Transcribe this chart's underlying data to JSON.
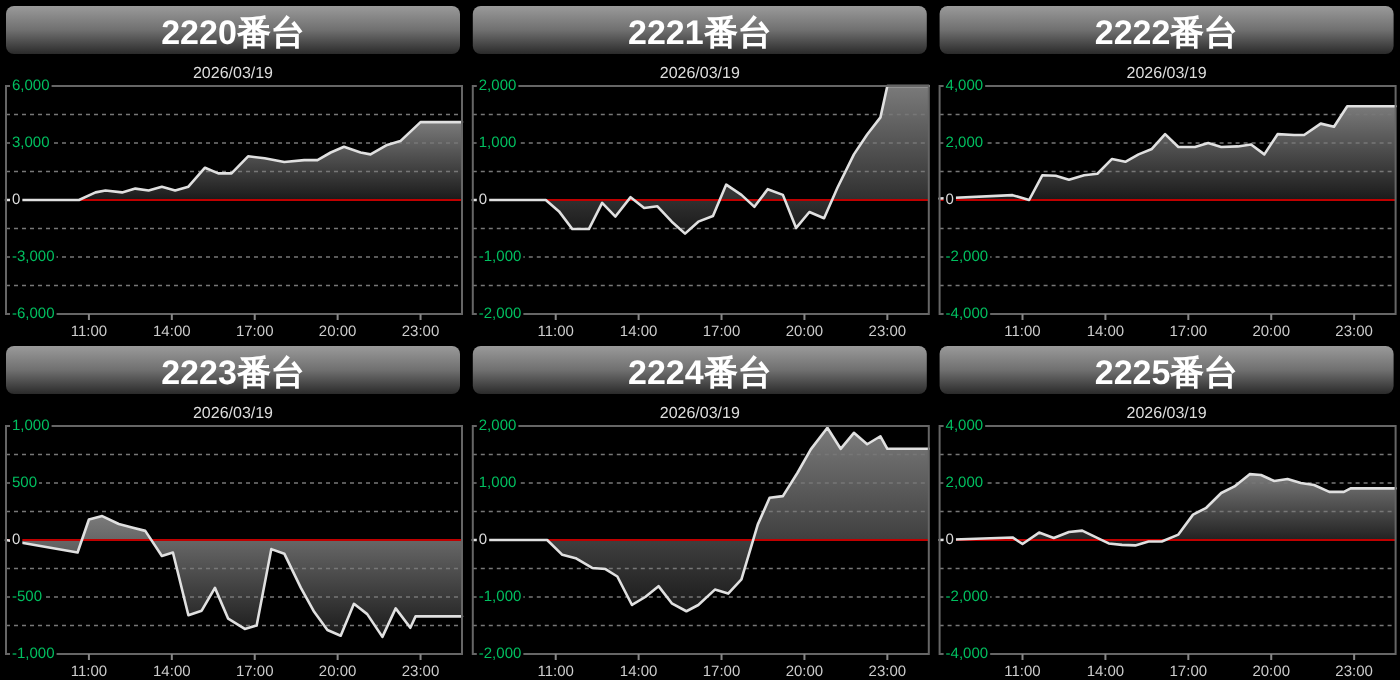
{
  "chart_data": [
    {
      "type": "area",
      "title": "2220番台",
      "subtitle": "2026/03/19",
      "xlim": [
        8,
        24.5
      ],
      "xticks": [
        {
          "value": 11,
          "label": "11:00"
        },
        {
          "value": 14,
          "label": "14:00"
        },
        {
          "value": 17,
          "label": "17:00"
        },
        {
          "value": 20,
          "label": "20:00"
        },
        {
          "value": 23,
          "label": "23:00"
        }
      ],
      "ylim": [
        -6000,
        6000
      ],
      "yticks": [
        {
          "value": 6000,
          "label": "6,000"
        },
        {
          "value": 4500,
          "label": null
        },
        {
          "value": 3000,
          "label": "3,000"
        },
        {
          "value": 1500,
          "label": null
        },
        {
          "value": 0,
          "label": "0"
        },
        {
          "value": -1500,
          "label": null
        },
        {
          "value": -3000,
          "label": "-3,000"
        },
        {
          "value": -4500,
          "label": null
        },
        {
          "value": -6000,
          "label": "-6,000"
        }
      ],
      "grid": "y",
      "ref_lines": [
        {
          "axis": "y",
          "value": 0,
          "color": "#c00000"
        }
      ],
      "x": [
        8.0,
        10.64,
        11.24,
        11.6,
        12.2,
        12.68,
        13.16,
        13.64,
        14.12,
        14.6,
        15.2,
        15.68,
        16.16,
        16.76,
        17.36,
        18.07,
        18.79,
        19.27,
        19.75,
        20.23,
        20.83,
        21.19,
        21.79,
        22.27,
        23.0,
        24.5
      ],
      "series": [
        {
          "color": "#e0e0e0",
          "values": [
            0,
            0,
            400,
            500,
            400,
            600,
            500,
            700,
            500,
            700,
            1700,
            1400,
            1400,
            2300,
            2200,
            2000,
            2100,
            2100,
            2500,
            2800,
            2500,
            2400,
            2900,
            3100,
            4100,
            4100
          ]
        }
      ]
    },
    {
      "type": "area",
      "title": "2221番台",
      "subtitle": "2026/03/19",
      "xlim": [
        8,
        24.5
      ],
      "xticks": [
        {
          "value": 11,
          "label": "11:00"
        },
        {
          "value": 14,
          "label": "14:00"
        },
        {
          "value": 17,
          "label": "17:00"
        },
        {
          "value": 20,
          "label": "20:00"
        },
        {
          "value": 23,
          "label": "23:00"
        }
      ],
      "ylim": [
        -2000,
        2000
      ],
      "yticks": [
        {
          "value": 2000,
          "label": "2,000"
        },
        {
          "value": 1500,
          "label": null
        },
        {
          "value": 1000,
          "label": "1,000"
        },
        {
          "value": 500,
          "label": null
        },
        {
          "value": 0,
          "label": "0"
        },
        {
          "value": -500,
          "label": null
        },
        {
          "value": -1000,
          "label": "-1,000"
        },
        {
          "value": -1500,
          "label": null
        },
        {
          "value": -2000,
          "label": "-2,000"
        }
      ],
      "grid": "y",
      "ref_lines": [
        {
          "axis": "y",
          "value": 0,
          "color": "#c00000"
        }
      ],
      "x": [
        8.0,
        10.64,
        11.12,
        11.6,
        12.2,
        12.68,
        13.16,
        13.71,
        14.2,
        14.68,
        15.2,
        15.68,
        16.16,
        16.69,
        17.17,
        17.72,
        18.19,
        18.67,
        19.22,
        19.7,
        20.18,
        20.71,
        21.19,
        21.79,
        22.27,
        22.75,
        23.0,
        24.5
      ],
      "series": [
        {
          "color": "#e0e0e0",
          "values": [
            0,
            0,
            -200,
            -510,
            -510,
            -50,
            -290,
            50,
            -140,
            -110,
            -380,
            -590,
            -380,
            -280,
            270,
            90,
            -120,
            190,
            90,
            -490,
            -210,
            -320,
            210,
            800,
            1150,
            1450,
            2000,
            2000
          ]
        }
      ]
    },
    {
      "type": "area",
      "title": "2222番台",
      "subtitle": "2026/03/19",
      "xlim": [
        8,
        24.5
      ],
      "xticks": [
        {
          "value": 11,
          "label": "11:00"
        },
        {
          "value": 14,
          "label": "14:00"
        },
        {
          "value": 17,
          "label": "17:00"
        },
        {
          "value": 20,
          "label": "20:00"
        },
        {
          "value": 23,
          "label": "23:00"
        }
      ],
      "ylim": [
        -4000,
        4000
      ],
      "yticks": [
        {
          "value": 4000,
          "label": "4,000"
        },
        {
          "value": 3000,
          "label": null
        },
        {
          "value": 2000,
          "label": "2,000"
        },
        {
          "value": 1000,
          "label": null
        },
        {
          "value": 0,
          "label": "0"
        },
        {
          "value": -1000,
          "label": null
        },
        {
          "value": -2000,
          "label": "-2,000"
        },
        {
          "value": -3000,
          "label": null
        },
        {
          "value": -4000,
          "label": "-4,000"
        }
      ],
      "grid": "y",
      "ref_lines": [
        {
          "axis": "y",
          "value": 0,
          "color": "#c00000"
        }
      ],
      "x": [
        8.0,
        10.64,
        11.24,
        11.72,
        12.2,
        12.68,
        13.23,
        13.71,
        14.24,
        14.72,
        15.2,
        15.68,
        16.16,
        16.64,
        17.24,
        17.72,
        18.19,
        18.79,
        19.27,
        19.75,
        20.23,
        20.83,
        21.19,
        21.79,
        22.27,
        22.75,
        24.5
      ],
      "series": [
        {
          "color": "#e0e0e0",
          "values": [
            50,
            170,
            0,
            870,
            850,
            710,
            870,
            920,
            1440,
            1340,
            1600,
            1790,
            2310,
            1860,
            1860,
            2000,
            1860,
            1880,
            1950,
            1600,
            2310,
            2280,
            2280,
            2680,
            2570,
            3290,
            3290
          ]
        }
      ]
    },
    {
      "type": "area",
      "title": "2223番台",
      "subtitle": "2026/03/19",
      "xlim": [
        8,
        24.5
      ],
      "xticks": [
        {
          "value": 11,
          "label": "11:00"
        },
        {
          "value": 14,
          "label": "14:00"
        },
        {
          "value": 17,
          "label": "17:00"
        },
        {
          "value": 20,
          "label": "20:00"
        },
        {
          "value": 23,
          "label": "23:00"
        }
      ],
      "ylim": [
        -1000,
        1000
      ],
      "yticks": [
        {
          "value": 1000,
          "label": "1,000"
        },
        {
          "value": 750,
          "label": null
        },
        {
          "value": 500,
          "label": "500"
        },
        {
          "value": 250,
          "label": null
        },
        {
          "value": 0,
          "label": "0"
        },
        {
          "value": -250,
          "label": null
        },
        {
          "value": -500,
          "label": "-500"
        },
        {
          "value": -750,
          "label": null
        },
        {
          "value": -1000,
          "label": "-1,000"
        }
      ],
      "grid": "y",
      "ref_lines": [
        {
          "axis": "y",
          "value": 0,
          "color": "#c00000"
        }
      ],
      "x": [
        8.0,
        10.59,
        11.0,
        11.48,
        12.08,
        12.56,
        13.04,
        13.64,
        14.04,
        14.6,
        15.08,
        15.56,
        16.04,
        16.64,
        17.07,
        17.6,
        18.07,
        18.67,
        19.15,
        19.63,
        20.11,
        20.59,
        21.07,
        21.62,
        22.1,
        22.63,
        22.82,
        24.5
      ],
      "series": [
        {
          "color": "#e0e0e0",
          "values": [
            0,
            -110,
            180,
            210,
            140,
            110,
            80,
            -140,
            -110,
            -660,
            -620,
            -420,
            -690,
            -780,
            -750,
            -80,
            -120,
            -420,
            -630,
            -790,
            -840,
            -560,
            -650,
            -850,
            -600,
            -770,
            -670,
            -670
          ]
        }
      ]
    },
    {
      "type": "area",
      "title": "2224番台",
      "subtitle": "2026/03/19",
      "xlim": [
        8,
        24.5
      ],
      "xticks": [
        {
          "value": 11,
          "label": "11:00"
        },
        {
          "value": 14,
          "label": "14:00"
        },
        {
          "value": 17,
          "label": "17:00"
        },
        {
          "value": 20,
          "label": "20:00"
        },
        {
          "value": 23,
          "label": "23:00"
        }
      ],
      "ylim": [
        -2000,
        2000
      ],
      "yticks": [
        {
          "value": 2000,
          "label": "2,000"
        },
        {
          "value": 1500,
          "label": null
        },
        {
          "value": 1000,
          "label": "1,000"
        },
        {
          "value": 500,
          "label": null
        },
        {
          "value": 0,
          "label": "0"
        },
        {
          "value": -500,
          "label": null
        },
        {
          "value": -1000,
          "label": "-1,000"
        },
        {
          "value": -1500,
          "label": null
        },
        {
          "value": -2000,
          "label": "-2,000"
        }
      ],
      "grid": "y",
      "ref_lines": [
        {
          "axis": "y",
          "value": 0,
          "color": "#c00000"
        }
      ],
      "x": [
        8.0,
        10.69,
        11.24,
        11.72,
        12.32,
        12.8,
        13.23,
        13.76,
        14.24,
        14.72,
        15.2,
        15.73,
        16.16,
        16.76,
        17.24,
        17.72,
        18.31,
        18.74,
        19.22,
        19.75,
        20.23,
        20.83,
        21.31,
        21.79,
        22.27,
        22.75,
        23.0,
        24.5
      ],
      "series": [
        {
          "color": "#e0e0e0",
          "values": [
            0,
            0,
            -260,
            -320,
            -490,
            -510,
            -640,
            -1140,
            -1000,
            -810,
            -1110,
            -1250,
            -1140,
            -870,
            -940,
            -690,
            270,
            740,
            770,
            1180,
            1590,
            1970,
            1600,
            1880,
            1680,
            1820,
            1600,
            1600
          ]
        }
      ]
    },
    {
      "type": "area",
      "title": "2225番台",
      "subtitle": "2026/03/19",
      "xlim": [
        8,
        24.5
      ],
      "xticks": [
        {
          "value": 11,
          "label": "11:00"
        },
        {
          "value": 14,
          "label": "14:00"
        },
        {
          "value": 17,
          "label": "17:00"
        },
        {
          "value": 20,
          "label": "20:00"
        },
        {
          "value": 23,
          "label": "23:00"
        }
      ],
      "ylim": [
        -4000,
        4000
      ],
      "yticks": [
        {
          "value": 4000,
          "label": "4,000"
        },
        {
          "value": 3000,
          "label": null
        },
        {
          "value": 2000,
          "label": "2,000"
        },
        {
          "value": 1000,
          "label": null
        },
        {
          "value": 0,
          "label": "0"
        },
        {
          "value": -1000,
          "label": null
        },
        {
          "value": -2000,
          "label": "-2,000"
        },
        {
          "value": -3000,
          "label": null
        },
        {
          "value": -4000,
          "label": "-4,000"
        }
      ],
      "grid": "y",
      "ref_lines": [
        {
          "axis": "y",
          "value": 0,
          "color": "#c00000"
        }
      ],
      "x": [
        8.0,
        10.64,
        11.0,
        11.6,
        12.13,
        12.68,
        13.16,
        13.76,
        14.12,
        14.6,
        15.08,
        15.56,
        16.04,
        16.64,
        17.17,
        17.65,
        18.19,
        18.67,
        19.22,
        19.63,
        20.11,
        20.59,
        21.07,
        21.55,
        22.1,
        22.63,
        22.87,
        24.5
      ],
      "series": [
        {
          "color": "#e0e0e0",
          "values": [
            0,
            90,
            -140,
            260,
            70,
            280,
            330,
            50,
            -120,
            -170,
            -190,
            -50,
            -50,
            190,
            890,
            1130,
            1650,
            1880,
            2310,
            2280,
            2070,
            2140,
            2000,
            1930,
            1690,
            1690,
            1810,
            1810
          ]
        }
      ]
    }
  ]
}
